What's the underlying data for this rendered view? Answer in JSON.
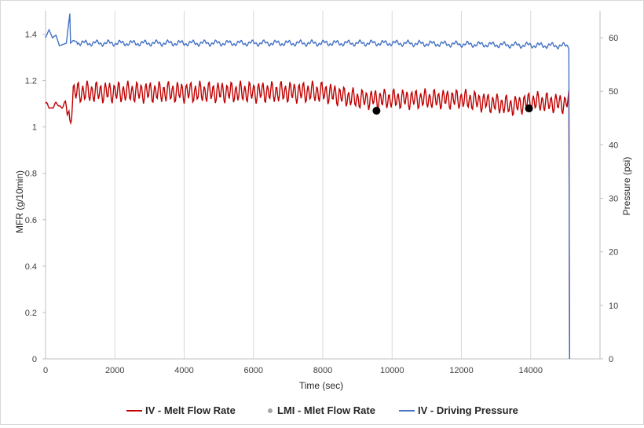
{
  "chart_data": {
    "type": "line",
    "title": "",
    "xlabel": "Time (sec)",
    "ylabel_left": "MFR (g/10min)",
    "ylabel_right": "Pressure (psi)",
    "xlim": [
      0,
      16000
    ],
    "ylim_left": [
      0,
      1.5
    ],
    "ylim_right": [
      0,
      65
    ],
    "x_ticks": [
      "0",
      "2000",
      "4000",
      "6000",
      "8000",
      "10000",
      "12000",
      "14000"
    ],
    "y_left_ticks": [
      "0",
      "0.2",
      "0.4",
      "0.6",
      "0.8",
      "1",
      "1.2",
      "1.4"
    ],
    "y_right_ticks": [
      "0",
      "10",
      "20",
      "30",
      "40",
      "50",
      "60"
    ],
    "grid": "vertical",
    "legend_position": "bottom",
    "series": [
      {
        "name": "IV - Melt Flow Rate",
        "axis": "left",
        "color": "#c00000",
        "style": "oscillating line, ~1.09 baseline then ~1.15 center with ±0.04 oscillation, drops to 0 at end",
        "x": [
          0,
          300,
          600,
          700,
          800,
          1500,
          3000,
          5000,
          8000,
          9000,
          10000,
          12000,
          13500,
          14000,
          15000,
          15100,
          15120
        ],
        "values": [
          1.09,
          1.09,
          1.1,
          1.01,
          1.15,
          1.15,
          1.15,
          1.15,
          1.15,
          1.12,
          1.12,
          1.12,
          1.09,
          1.11,
          1.1,
          1.12,
          0
        ]
      },
      {
        "name": "LMI - Mlet Flow Rate",
        "axis": "left",
        "color": "#000000",
        "style": "markers",
        "x": [
          9550,
          13950
        ],
        "values": [
          1.07,
          1.08
        ]
      },
      {
        "name": "IV - Driving Pressure",
        "axis": "right",
        "color": "#4472c4",
        "style": "line, ~59 psi with small noise, initial spikes, drops to 0 at end",
        "x": [
          0,
          100,
          200,
          300,
          400,
          600,
          700,
          720,
          800,
          1000,
          5000,
          10000,
          15000,
          15100,
          15120
        ],
        "values": [
          60,
          61.5,
          60,
          60.5,
          58.5,
          59,
          64.5,
          59,
          59.5,
          59,
          59,
          59,
          58.5,
          58.5,
          0
        ]
      }
    ]
  }
}
